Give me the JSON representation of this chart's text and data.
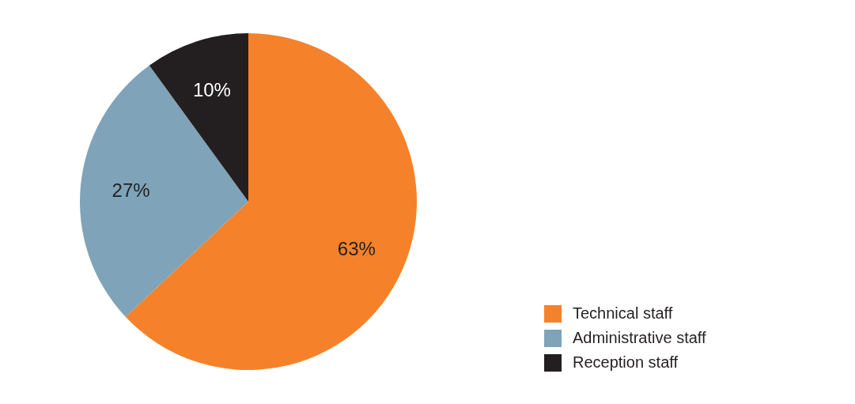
{
  "chart_data": {
    "type": "pie",
    "categories": [
      "Technical staff",
      "Administrative staff",
      "Reception staff"
    ],
    "values": [
      63,
      27,
      10
    ],
    "value_labels": [
      "63%",
      "27%",
      "10%"
    ],
    "colors": [
      "#f5822a",
      "#7fa3b8",
      "#231f20"
    ],
    "legend": "bottom right"
  }
}
